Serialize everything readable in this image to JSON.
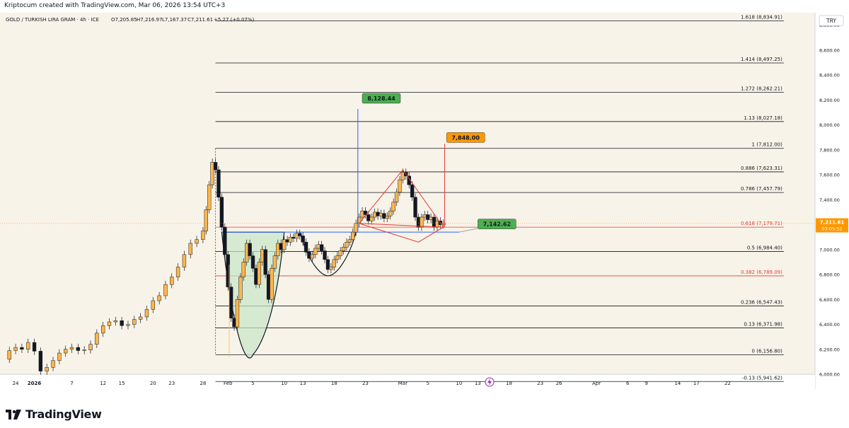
{
  "header": {
    "created_text": "Kriptocum created with TradingView.com, Mar 06, 2026 13:54 UTC+3"
  },
  "chart_data": {
    "type": "candlestick",
    "title": "GOLD / TURKISH LIRA GRAM · 4h · ICE",
    "ohlc_text": {
      "open": "O7,205.85",
      "high": "H7,216.97",
      "low": "L7,167.37",
      "close": "C7,211.61",
      "change": "+5.27 (+0.07%)"
    },
    "currency": "TRY",
    "ylim": [
      6000,
      8900
    ],
    "y_ticks": [
      {
        "value": 8800,
        "label": "8,800.00"
      },
      {
        "value": 8600,
        "label": "8,600.00"
      },
      {
        "value": 8400,
        "label": "8,400.00"
      },
      {
        "value": 8200,
        "label": "8,200.00"
      },
      {
        "value": 8000,
        "label": "8,000.00"
      },
      {
        "value": 7800,
        "label": "7,800.00"
      },
      {
        "value": 7600,
        "label": "7,600.00"
      },
      {
        "value": 7400,
        "label": "7,400.00"
      },
      {
        "value": 7000,
        "label": "7,000.00"
      },
      {
        "value": 6800,
        "label": "6,800.00"
      },
      {
        "value": 6600,
        "label": "6,600.00"
      },
      {
        "value": 6400,
        "label": "6,400.00"
      },
      {
        "value": 6200,
        "label": "6,200.00"
      },
      {
        "value": 6000,
        "label": "6,000.00"
      }
    ],
    "x_ticks": [
      {
        "label": "24",
        "x": -3
      },
      {
        "label": "2026",
        "x": 0
      },
      {
        "label": "7",
        "x": 6
      },
      {
        "label": "12",
        "x": 11
      },
      {
        "label": "15",
        "x": 14
      },
      {
        "label": "20",
        "x": 19
      },
      {
        "label": "23",
        "x": 22
      },
      {
        "label": "28",
        "x": 27
      },
      {
        "label": "Feb",
        "x": 31
      },
      {
        "label": "5",
        "x": 35
      },
      {
        "label": "10",
        "x": 40
      },
      {
        "label": "13",
        "x": 43
      },
      {
        "label": "18",
        "x": 48
      },
      {
        "label": "23",
        "x": 53
      },
      {
        "label": "Mar",
        "x": 59
      },
      {
        "label": "5",
        "x": 63
      },
      {
        "label": "10",
        "x": 68
      },
      {
        "label": "13",
        "x": 71
      },
      {
        "label": "18",
        "x": 76
      },
      {
        "label": "23",
        "x": 81
      },
      {
        "label": "26",
        "x": 84
      },
      {
        "label": "Apr",
        "x": 90
      },
      {
        "label": "6",
        "x": 95
      },
      {
        "label": "9",
        "x": 98
      },
      {
        "label": "14",
        "x": 103
      },
      {
        "label": "17",
        "x": 106
      },
      {
        "label": "22",
        "x": 111
      }
    ],
    "xlim": [
      -5.5,
      125
    ],
    "fib_levels": [
      {
        "label": "1.618 (8,834.91)",
        "value": 8834.91,
        "color": "#131722"
      },
      {
        "label": "1.414 (8,497.25)",
        "value": 8497.25,
        "color": "#131722"
      },
      {
        "label": "1.272 (8,262.21)",
        "value": 8262.21,
        "color": "#131722"
      },
      {
        "label": "1.13 (8,027.18)",
        "value": 8027.18,
        "color": "#131722"
      },
      {
        "label": "1 (7,812.00)",
        "value": 7812.0,
        "color": "#131722"
      },
      {
        "label": "0.886 (7,623.31)",
        "value": 7623.31,
        "color": "#131722"
      },
      {
        "label": "0.786 (7,457.79)",
        "value": 7457.79,
        "color": "#131722"
      },
      {
        "label": "0.618 (7,179.71)",
        "value": 7179.71,
        "color": "#e53935"
      },
      {
        "label": "0.5 (6,984.40)",
        "value": 6984.4,
        "color": "#131722"
      },
      {
        "label": "0.382 (6,789.09)",
        "value": 6789.09,
        "color": "#e53935"
      },
      {
        "label": "0.236 (6,547.43)",
        "value": 6547.43,
        "color": "#131722"
      },
      {
        "label": "0.13 (6,371.98)",
        "value": 6371.98,
        "color": "#131722"
      },
      {
        "label": "0 (6,156.80)",
        "value": 6156.8,
        "color": "#131722"
      },
      {
        "label": "-0.13 (5,941.62)",
        "value": 5941.62,
        "color": "#131722"
      }
    ],
    "targets": [
      {
        "label": "8,128.44",
        "value": 8128.44,
        "color": "#4caf50"
      },
      {
        "label": "7,848.00",
        "value": 7848.0,
        "color": "#ff9800"
      },
      {
        "label": "7,142.62",
        "value": 7142.62,
        "color": "#4caf50"
      }
    ],
    "last_price": {
      "label": "7,211.61",
      "value": 7211.61,
      "countdown": "03:05:52",
      "color": "#ff9800"
    },
    "neckline": 7140,
    "closes": [
      {
        "x": -5.0,
        "v": 6120
      },
      {
        "x": -4.0,
        "v": 6190
      },
      {
        "x": -3.0,
        "v": 6215
      },
      {
        "x": -2.0,
        "v": 6200
      },
      {
        "x": -1.0,
        "v": 6255
      },
      {
        "x": 0.0,
        "v": 6185
      },
      {
        "x": 1.0,
        "v": 6025
      },
      {
        "x": 2.0,
        "v": 6055
      },
      {
        "x": 3.0,
        "v": 6110
      },
      {
        "x": 4.0,
        "v": 6170
      },
      {
        "x": 5.0,
        "v": 6200
      },
      {
        "x": 6.0,
        "v": 6215
      },
      {
        "x": 7.0,
        "v": 6190
      },
      {
        "x": 8.0,
        "v": 6195
      },
      {
        "x": 9.0,
        "v": 6240
      },
      {
        "x": 10.0,
        "v": 6330
      },
      {
        "x": 11.0,
        "v": 6390
      },
      {
        "x": 12.0,
        "v": 6420
      },
      {
        "x": 13.0,
        "v": 6430
      },
      {
        "x": 14.0,
        "v": 6390
      },
      {
        "x": 15.0,
        "v": 6400
      },
      {
        "x": 16.0,
        "v": 6440
      },
      {
        "x": 17.0,
        "v": 6460
      },
      {
        "x": 18.0,
        "v": 6520
      },
      {
        "x": 19.0,
        "v": 6590
      },
      {
        "x": 20.0,
        "v": 6630
      },
      {
        "x": 21.0,
        "v": 6720
      },
      {
        "x": 22.0,
        "v": 6780
      },
      {
        "x": 23.0,
        "v": 6860
      },
      {
        "x": 24.0,
        "v": 6960
      },
      {
        "x": 25.0,
        "v": 7050
      },
      {
        "x": 26.0,
        "v": 7080
      },
      {
        "x": 27.0,
        "v": 7150
      },
      {
        "x": 27.5,
        "v": 7320
      },
      {
        "x": 28.0,
        "v": 7520
      },
      {
        "x": 28.5,
        "v": 7700
      },
      {
        "x": 29.0,
        "v": 7640
      },
      {
        "x": 29.5,
        "v": 7420
      },
      {
        "x": 30.0,
        "v": 7180
      },
      {
        "x": 30.5,
        "v": 6960
      },
      {
        "x": 31.0,
        "v": 6700
      },
      {
        "x": 31.5,
        "v": 6450
      },
      {
        "x": 32.0,
        "v": 6380
      },
      {
        "x": 32.5,
        "v": 6600
      },
      {
        "x": 33.0,
        "v": 6780
      },
      {
        "x": 33.5,
        "v": 6900
      },
      {
        "x": 34.0,
        "v": 7050
      },
      {
        "x": 34.5,
        "v": 6950
      },
      {
        "x": 35.0,
        "v": 6850
      },
      {
        "x": 35.5,
        "v": 6720
      },
      {
        "x": 36.0,
        "v": 6900
      },
      {
        "x": 36.5,
        "v": 7000
      },
      {
        "x": 37.0,
        "v": 6800
      },
      {
        "x": 37.5,
        "v": 6600
      },
      {
        "x": 38.0,
        "v": 6850
      },
      {
        "x": 38.5,
        "v": 6950
      },
      {
        "x": 39.0,
        "v": 7050
      },
      {
        "x": 39.5,
        "v": 7000
      },
      {
        "x": 40.0,
        "v": 7080
      },
      {
        "x": 40.5,
        "v": 7060
      },
      {
        "x": 41.0,
        "v": 7100
      },
      {
        "x": 41.5,
        "v": 7090
      },
      {
        "x": 42.0,
        "v": 7130
      },
      {
        "x": 42.5,
        "v": 7110
      },
      {
        "x": 43.0,
        "v": 7060
      },
      {
        "x": 43.5,
        "v": 6980
      },
      {
        "x": 44.0,
        "v": 6930
      },
      {
        "x": 44.5,
        "v": 6960
      },
      {
        "x": 45.0,
        "v": 7010
      },
      {
        "x": 45.5,
        "v": 7040
      },
      {
        "x": 46.0,
        "v": 6990
      },
      {
        "x": 46.5,
        "v": 6920
      },
      {
        "x": 47.0,
        "v": 6840
      },
      {
        "x": 47.5,
        "v": 6860
      },
      {
        "x": 48.0,
        "v": 6920
      },
      {
        "x": 48.5,
        "v": 6950
      },
      {
        "x": 49.0,
        "v": 6990
      },
      {
        "x": 49.5,
        "v": 7020
      },
      {
        "x": 50.0,
        "v": 7060
      },
      {
        "x": 50.5,
        "v": 7080
      },
      {
        "x": 51.0,
        "v": 7140
      },
      {
        "x": 51.5,
        "v": 7210
      },
      {
        "x": 52.0,
        "v": 7260
      },
      {
        "x": 52.5,
        "v": 7310
      },
      {
        "x": 53.0,
        "v": 7280
      },
      {
        "x": 53.5,
        "v": 7230
      },
      {
        "x": 54.0,
        "v": 7260
      },
      {
        "x": 54.5,
        "v": 7300
      },
      {
        "x": 55.0,
        "v": 7270
      },
      {
        "x": 55.5,
        "v": 7290
      },
      {
        "x": 56.0,
        "v": 7250
      },
      {
        "x": 56.5,
        "v": 7270
      },
      {
        "x": 57.0,
        "v": 7310
      },
      {
        "x": 57.5,
        "v": 7380
      },
      {
        "x": 58.0,
        "v": 7460
      },
      {
        "x": 58.5,
        "v": 7560
      },
      {
        "x": 59.0,
        "v": 7620
      },
      {
        "x": 59.5,
        "v": 7590
      },
      {
        "x": 60.0,
        "v": 7520
      },
      {
        "x": 60.5,
        "v": 7420
      },
      {
        "x": 61.0,
        "v": 7260
      },
      {
        "x": 61.5,
        "v": 7180
      },
      {
        "x": 62.0,
        "v": 7260
      },
      {
        "x": 62.5,
        "v": 7280
      },
      {
        "x": 63.0,
        "v": 7240
      },
      {
        "x": 63.5,
        "v": 7260
      },
      {
        "x": 64.0,
        "v": 7180
      },
      {
        "x": 64.5,
        "v": 7230
      },
      {
        "x": 65.0,
        "v": 7200
      },
      {
        "x": 65.5,
        "v": 7211.61
      }
    ],
    "annotations": {
      "cup_bottom": 6156.8,
      "cup_rim": 7140,
      "handle_bottom": 6790,
      "triangle_top": 7640,
      "triangle_bottom": 7060,
      "triangle_left": 7210
    }
  }
}
